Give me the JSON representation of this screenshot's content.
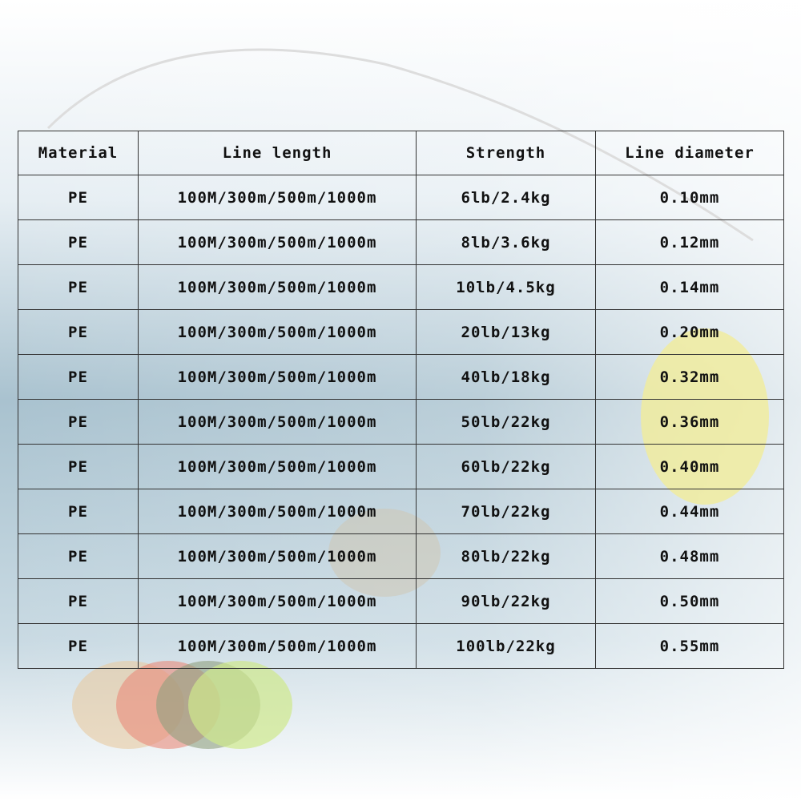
{
  "table": {
    "header": [
      "Material",
      "Line length",
      "Strength",
      "Line diameter"
    ],
    "rows": [
      [
        "PE",
        "100M/300m/500m/1000m",
        "6lb/2.4kg",
        "0.10mm"
      ],
      [
        "PE",
        "100M/300m/500m/1000m",
        "8lb/3.6kg",
        "0.12mm"
      ],
      [
        "PE",
        "100M/300m/500m/1000m",
        "10lb/4.5kg",
        "0.14mm"
      ],
      [
        "PE",
        "100M/300m/500m/1000m",
        "20lb/13kg",
        "0.20mm"
      ],
      [
        "PE",
        "100M/300m/500m/1000m",
        "40lb/18kg",
        "0.32mm"
      ],
      [
        "PE",
        "100M/300m/500m/1000m",
        "50lb/22kg",
        "0.36mm"
      ],
      [
        "PE",
        "100M/300m/500m/1000m",
        "60lb/22kg",
        "0.40mm"
      ],
      [
        "PE",
        "100M/300m/500m/1000m",
        "70lb/22kg",
        "0.44mm"
      ],
      [
        "PE",
        "100M/300m/500m/1000m",
        "80lb/22kg",
        "0.48mm"
      ],
      [
        "PE",
        "100M/300m/500m/1000m",
        "90lb/22kg",
        "0.50mm"
      ],
      [
        "PE",
        "100M/300m/500m/1000m",
        "100lb/22kg",
        "0.55mm"
      ]
    ]
  }
}
